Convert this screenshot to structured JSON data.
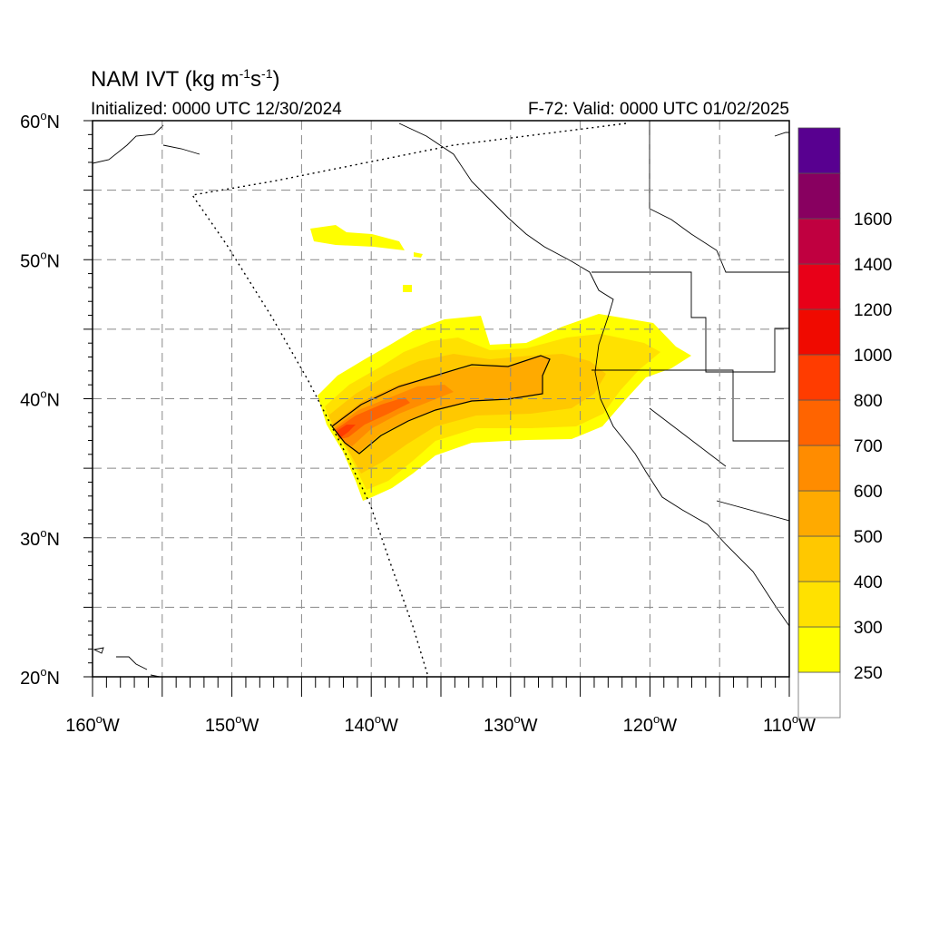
{
  "header": {
    "title": "NAM IVT (kg m",
    "title_sup1": "-1",
    "title_mid": "s",
    "title_sup2": "-1",
    "title_end": ")",
    "initialized": "Initialized: 0000 UTC 12/30/2024",
    "valid": "F-72: Valid: 0000 UTC 01/02/2025"
  },
  "map": {
    "lon_range": [
      -160,
      -110
    ],
    "lat_range": [
      20,
      60
    ],
    "grid_step": 5,
    "lat_labels": [
      {
        "deg": "60",
        "lat": 60
      },
      {
        "deg": "50",
        "lat": 50
      },
      {
        "deg": "40",
        "lat": 40
      },
      {
        "deg": "30",
        "lat": 30
      },
      {
        "deg": "20",
        "lat": 20
      }
    ],
    "lon_labels": [
      {
        "deg": "160",
        "lon": -160
      },
      {
        "deg": "150",
        "lon": -150
      },
      {
        "deg": "140",
        "lon": -140
      },
      {
        "deg": "130",
        "lon": -130
      },
      {
        "deg": "120",
        "lon": -120
      },
      {
        "deg": "110",
        "lon": -110
      }
    ],
    "lat_hemisphere": "N",
    "lon_hemisphere": "W",
    "degree_symbol": "o"
  },
  "colorbar": {
    "levels": [
      {
        "label": "250",
        "color": "#ffff00"
      },
      {
        "label": "300",
        "color": "#ffe100"
      },
      {
        "label": "400",
        "color": "#ffc800"
      },
      {
        "label": "500",
        "color": "#ffaa00"
      },
      {
        "label": "600",
        "color": "#ff8c00"
      },
      {
        "label": "700",
        "color": "#ff6400"
      },
      {
        "label": "800",
        "color": "#ff3c00"
      },
      {
        "label": "1000",
        "color": "#f00a00"
      },
      {
        "label": "1200",
        "color": "#e80018"
      },
      {
        "label": "1400",
        "color": "#c00040"
      },
      {
        "label": "1600",
        "color": "#880060"
      },
      {
        "label": "",
        "color": "#580090"
      }
    ]
  }
}
